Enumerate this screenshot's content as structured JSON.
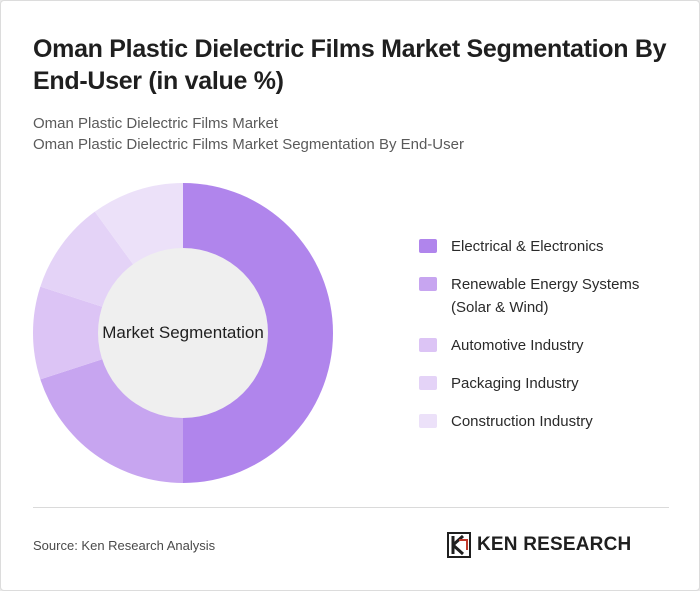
{
  "header": {
    "title": "Oman Plastic Dielectric Films Market Segmentation By End-User (in value %)",
    "subtitle_line1": "Oman Plastic Dielectric Films Market",
    "subtitle_line2": "Oman Plastic Dielectric Films Market Segmentation By End-User"
  },
  "chart_data": {
    "type": "pie",
    "variant": "donut",
    "center_label": "Market Segmentation",
    "categories": [
      "Electrical & Electronics",
      "Renewable Energy Systems (Solar & Wind)",
      "Automotive Industry",
      "Packaging Industry",
      "Construction Industry"
    ],
    "values": [
      50,
      20,
      10,
      10,
      10
    ],
    "colors": [
      "#b085ec",
      "#c7a5f0",
      "#dcc4f5",
      "#e4d3f7",
      "#ece1f9"
    ],
    "legend_position": "right"
  },
  "footer": {
    "source": "Source: Ken Research Analysis",
    "logo_text": "KEN RESEARCH"
  }
}
